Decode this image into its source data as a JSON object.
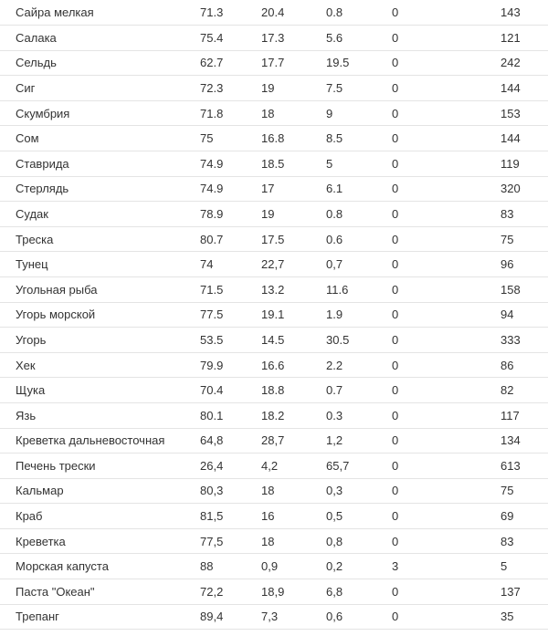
{
  "rows": [
    [
      "Сайра мелкая",
      "71.3",
      "20.4",
      "0.8",
      "0",
      "143"
    ],
    [
      "Салака",
      "75.4",
      "17.3",
      "5.6",
      "0",
      "121"
    ],
    [
      "Сельдь",
      "62.7",
      "17.7",
      "19.5",
      "0",
      "242"
    ],
    [
      "Сиг",
      "72.3",
      "19",
      "7.5",
      "0",
      "144"
    ],
    [
      "Скумбрия",
      "71.8",
      "18",
      "9",
      "0",
      "153"
    ],
    [
      "Сом",
      "75",
      "16.8",
      "8.5",
      "0",
      "144"
    ],
    [
      "Ставрида",
      "74.9",
      "18.5",
      "5",
      "0",
      "119"
    ],
    [
      "Стерлядь",
      "74.9",
      "17",
      "6.1",
      "0",
      "320"
    ],
    [
      "Судак",
      "78.9",
      "19",
      "0.8",
      "0",
      "83"
    ],
    [
      "Треска",
      "80.7",
      "17.5",
      "0.6",
      "0",
      "75"
    ],
    [
      "Тунец",
      "74",
      "22,7",
      "0,7",
      "0",
      "96"
    ],
    [
      "Угольная рыба",
      "71.5",
      "13.2",
      "11.6",
      "0",
      "158"
    ],
    [
      "Угорь морской",
      "77.5",
      "19.1",
      "1.9",
      "0",
      "94"
    ],
    [
      "Угорь",
      "53.5",
      "14.5",
      "30.5",
      "0",
      "333"
    ],
    [
      "Хек",
      "79.9",
      "16.6",
      "2.2",
      "0",
      "86"
    ],
    [
      "Щука",
      "70.4",
      "18.8",
      "0.7",
      "0",
      "82"
    ],
    [
      "Язь",
      "80.1",
      "18.2",
      "0.3",
      "0",
      "117"
    ],
    [
      "Креветка дальневосточная",
      "64,8",
      "28,7",
      "1,2",
      "0",
      "134"
    ],
    [
      "Печень трески",
      "26,4",
      "4,2",
      "65,7",
      "0",
      "613"
    ],
    [
      "Кальмар",
      "80,3",
      "18",
      "0,3",
      "0",
      "75"
    ],
    [
      "Краб",
      "81,5",
      "16",
      "0,5",
      "0",
      "69"
    ],
    [
      "Креветка",
      "77,5",
      "18",
      "0,8",
      "0",
      "83"
    ],
    [
      "Морская капуста",
      "88",
      "0,9",
      "0,2",
      "3",
      "5"
    ],
    [
      "Паста \"Океан\"",
      "72,2",
      "18,9",
      "6,8",
      "0",
      "137"
    ],
    [
      "Трепанг",
      "89,4",
      "7,3",
      "0,6",
      "0",
      "35"
    ]
  ]
}
